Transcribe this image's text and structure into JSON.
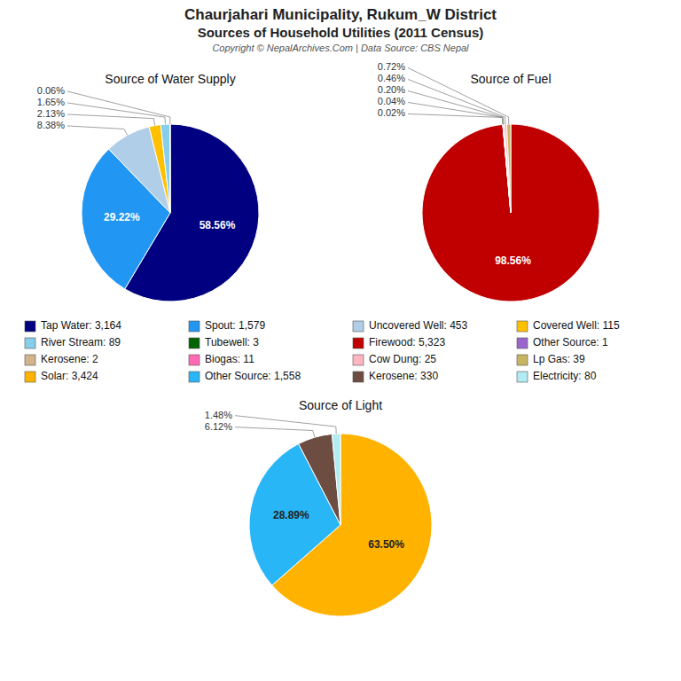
{
  "title": "Chaurjahari Municipality, Rukum_W District",
  "subtitle": "Sources of Household Utilities (2011 Census)",
  "annotations": [
    "Copyright © NepalArchives.Com | Data Source: CBS Nepal"
  ],
  "chart_data": [
    {
      "type": "pie",
      "title": "Source of Water Supply",
      "categories": [
        "Tap Water: 3,164",
        "Spout: 1,579",
        "Uncovered Well: 453",
        "Covered Well: 115",
        "River Stream: 89",
        "Tubewell: 3"
      ],
      "values": [
        58.56,
        29.22,
        8.38,
        2.13,
        1.65,
        0.06
      ],
      "value_labels": [
        "58.56%",
        "29.22%",
        "8.38%",
        "2.13%",
        "1.65%",
        "0.06%"
      ],
      "colors": [
        "#000080",
        "#2196F3",
        "#B0CEE8",
        "#FFC000",
        "#87CEEB",
        "#006400"
      ],
      "data_labels": true
    },
    {
      "type": "pie",
      "title": "Source of Fuel",
      "categories": [
        "Firewood: 5,323",
        "Other Source: 1",
        "Kerosene: 2",
        "Biogas: 11",
        "Cow Dung: 25",
        "Lp Gas: 39"
      ],
      "values": [
        98.56,
        0.02,
        0.04,
        0.2,
        0.46,
        0.72
      ],
      "value_labels": [
        "98.56%",
        "0.02%",
        "0.04%",
        "0.20%",
        "0.46%",
        "0.72%"
      ],
      "colors": [
        "#C00000",
        "#9966CC",
        "#D2B48C",
        "#FF69B4",
        "#FFB6C1",
        "#C8B560"
      ],
      "data_labels": true
    },
    {
      "type": "pie",
      "title": "Source of Light",
      "categories": [
        "Solar: 3,424",
        "Other Source: 1,558",
        "Kerosene: 330",
        "Electricity: 80"
      ],
      "values": [
        63.5,
        28.89,
        6.12,
        1.48
      ],
      "value_labels": [
        "63.50%",
        "28.89%",
        "6.12%",
        "1.48%"
      ],
      "colors": [
        "#FFB300",
        "#29B6F6",
        "#6D4C41",
        "#B2EBF2"
      ],
      "data_labels": true
    }
  ]
}
